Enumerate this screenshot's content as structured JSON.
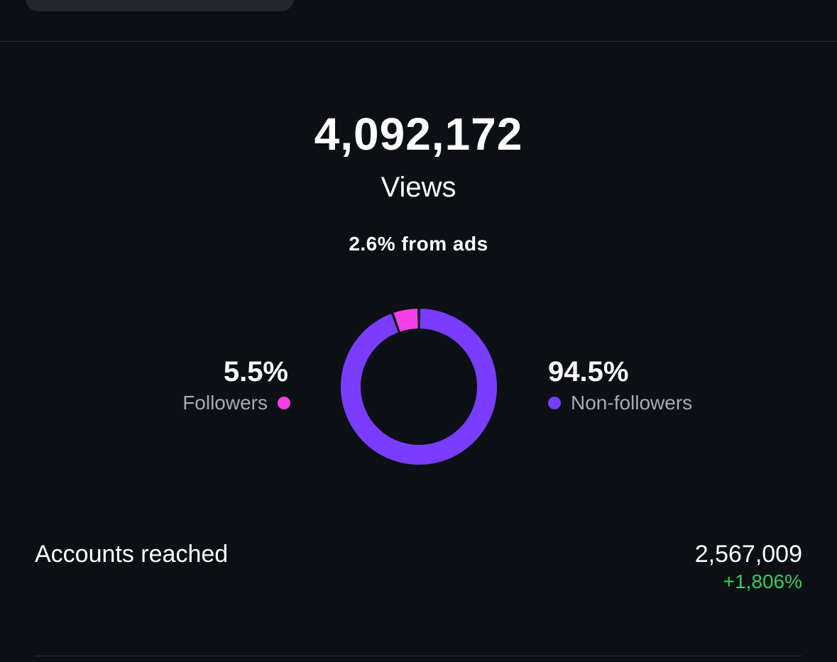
{
  "views": {
    "total": "4,092,172",
    "label": "Views",
    "ads_note": "2.6% from ads"
  },
  "audience": {
    "followers": {
      "percent": "5.5%",
      "label": "Followers",
      "color": "#f43fe8"
    },
    "non_followers": {
      "percent": "94.5%",
      "label": "Non-followers",
      "color": "#7a3cff"
    }
  },
  "metrics": {
    "accounts_reached": {
      "label": "Accounts reached",
      "value": "2,567,009",
      "change": "+1,806%",
      "change_color": "#2fcf5e"
    }
  },
  "chart_data": {
    "type": "pie",
    "categories": [
      "Followers",
      "Non-followers"
    ],
    "values": [
      5.5,
      94.5
    ],
    "colors": [
      "#f43fe8",
      "#7a3cff"
    ],
    "style": "donut",
    "title": "",
    "legend": "sides"
  }
}
